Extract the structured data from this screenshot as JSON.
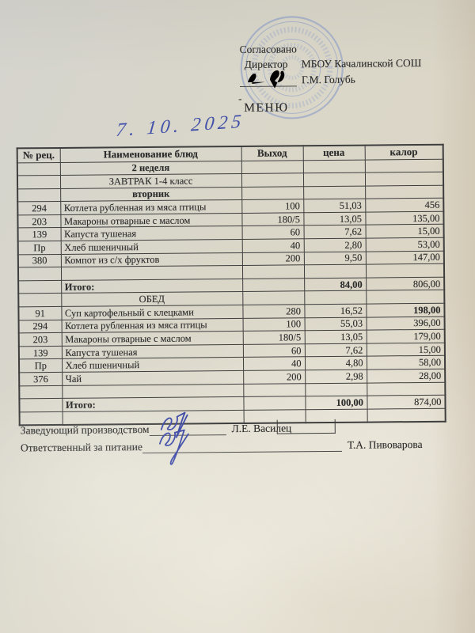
{
  "page": {
    "paper_color": "#dad7c9",
    "ink_blue": "#3c49a6",
    "stamp_blue": "#7b90c6",
    "text_color": "#2b2b2b"
  },
  "icons": {
    "stamp": "round-official-stamp",
    "director_signature": "ink-signature",
    "production_manager_signature": "ink-signature",
    "catering_officer_signature": "ink-signature"
  },
  "approval": {
    "agreed": "Согласовано",
    "director_label": "Директор",
    "organization": "МБОУ Качалинской СОШ",
    "director_name": "Г.М. Голубь",
    "dash": "-"
  },
  "title": "МЕНЮ",
  "handwritten_date": "7. 10. 2025",
  "table": {
    "columns": [
      "№ рец.",
      "Наименование блюд",
      "Выход",
      "цена",
      "калор"
    ],
    "rows": [
      {
        "type": "week",
        "label": "2 неделя"
      },
      {
        "type": "plain",
        "label": "ЗАВТРАК 1-4 класс"
      },
      {
        "type": "day",
        "label": "вторник"
      },
      {
        "type": "item",
        "rec": "294",
        "dish": "Котлета рубленная из  мяса птицы",
        "out": "100",
        "price": "51,03",
        "cal": "456"
      },
      {
        "type": "item",
        "rec": "203",
        "dish": "Макароны отварные с маслом",
        "out": "180/5",
        "price": "13,05",
        "cal": "135,00"
      },
      {
        "type": "item",
        "rec": "139",
        "dish": "Капуста тушеная",
        "out": "60",
        "price": "7,62",
        "cal": "15,00"
      },
      {
        "type": "item",
        "rec": "Пр",
        "dish": "Хлеб пшеничный",
        "out": "40",
        "price": "2,80",
        "cal": "53,00"
      },
      {
        "type": "item",
        "rec": "380",
        "dish": "Компот из с/х фруктов",
        "out": "200",
        "price": "9,50",
        "cal": "147,00"
      },
      {
        "type": "empty"
      },
      {
        "type": "total",
        "label": "Итого:",
        "price": "84,00",
        "cal": "806,00"
      },
      {
        "type": "plain",
        "label": "ОБЕД"
      },
      {
        "type": "item",
        "rec": "91",
        "dish": "Суп картофельный с клецками",
        "out": "280",
        "price": "16,52",
        "cal": "198,00",
        "cal_bold": true
      },
      {
        "type": "item",
        "rec": "294",
        "dish": "Котлета рубленная из мяса птицы",
        "out": "100",
        "price": "55,03",
        "cal": "396,00"
      },
      {
        "type": "item",
        "rec": "203",
        "dish": "Макароны отварные с маслом",
        "out": "180/5",
        "price": "13,05",
        "cal": "179,00"
      },
      {
        "type": "item",
        "rec": "139",
        "dish": "Капуста тушеная",
        "out": "60",
        "price": "7,62",
        "cal": "15,00"
      },
      {
        "type": "item",
        "rec": "Пр",
        "dish": "Хлеб пшеничный",
        "out": "40",
        "price": "4,80",
        "cal": "58,00"
      },
      {
        "type": "item",
        "rec": "376",
        "dish": "Чай",
        "out": "200",
        "price": "2,98",
        "cal": "28,00"
      },
      {
        "type": "empty"
      },
      {
        "type": "total",
        "label": "Итого:",
        "price": "100,00",
        "cal": "874,00"
      },
      {
        "type": "empty"
      }
    ]
  },
  "signatures": {
    "line1_label": "Заведующий производством",
    "line1_name": "Л.Е. Василец",
    "line2_label": "Ответственный за питание",
    "line2_name": "Т.А. Пивоварова"
  }
}
